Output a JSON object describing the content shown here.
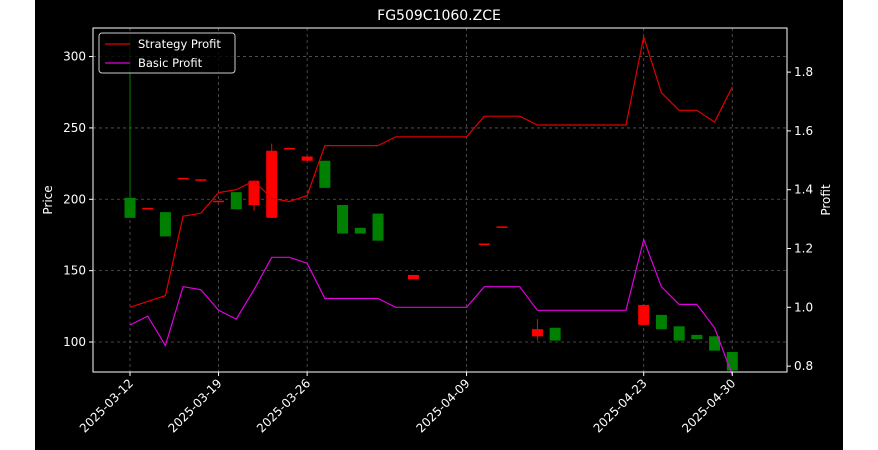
{
  "chart_data": {
    "type": "candlestick+line",
    "title": "FG509C1060.ZCE",
    "ylabel_left": "Price",
    "ylabel_right": "Profit",
    "ylim_left": [
      79,
      320
    ],
    "ylim_right": [
      0.78,
      1.95
    ],
    "yticks_left": [
      100,
      150,
      200,
      250,
      300
    ],
    "yticks_right": [
      0.8,
      1.0,
      1.2,
      1.4,
      1.6,
      1.8
    ],
    "xticks": [
      "2025-03-12",
      "2025-03-19",
      "2025-03-26",
      "2025-04-09",
      "2025-04-23",
      "2025-04-30"
    ],
    "grid": true,
    "legend_position": "top-left",
    "x_dates": [
      "2025-03-12",
      "2025-03-13",
      "2025-03-14",
      "2025-03-17",
      "2025-03-18",
      "2025-03-19",
      "2025-03-20",
      "2025-03-21",
      "2025-03-24",
      "2025-03-25",
      "2025-03-26",
      "2025-03-27",
      "2025-03-28",
      "2025-03-31",
      "2025-04-01",
      "2025-04-02",
      "2025-04-03",
      "2025-04-07",
      "2025-04-08",
      "2025-04-09",
      "2025-04-10",
      "2025-04-11",
      "2025-04-14",
      "2025-04-15",
      "2025-04-16",
      "2025-04-17",
      "2025-04-18",
      "2025-04-21",
      "2025-04-22",
      "2025-04-23",
      "2025-04-24",
      "2025-04-25",
      "2025-04-28",
      "2025-04-29",
      "2025-04-30"
    ],
    "candles": [
      {
        "x": "2025-03-12",
        "open": 201,
        "close": 187,
        "high": 316,
        "low": 187
      },
      {
        "x": "2025-03-13",
        "open": 194,
        "close": 194,
        "high": 194,
        "low": 194
      },
      {
        "x": "2025-03-14",
        "open": 191,
        "close": 174,
        "high": 191,
        "low": 174
      },
      {
        "x": "2025-03-17",
        "open": 215,
        "close": 215,
        "high": 215,
        "low": 215
      },
      {
        "x": "2025-03-18",
        "open": 214,
        "close": 214,
        "high": 214,
        "low": 214
      },
      {
        "x": "2025-03-19",
        "open": 199,
        "close": 199,
        "high": 199,
        "low": 199
      },
      {
        "x": "2025-03-20",
        "open": 205,
        "close": 193,
        "high": 205,
        "low": 193
      },
      {
        "x": "2025-03-21",
        "open": 196,
        "close": 213,
        "high": 213,
        "low": 192
      },
      {
        "x": "2025-03-24",
        "open": 187,
        "close": 234,
        "high": 239,
        "low": 187
      },
      {
        "x": "2025-03-25",
        "open": 236,
        "close": 236,
        "high": 236,
        "low": 236
      },
      {
        "x": "2025-03-26",
        "open": 227,
        "close": 230,
        "high": 230,
        "low": 227
      },
      {
        "x": "2025-03-27",
        "open": 227,
        "close": 208,
        "high": 227,
        "low": 208
      },
      {
        "x": "2025-03-28",
        "open": 196,
        "close": 176,
        "high": 196,
        "low": 176
      },
      {
        "x": "2025-03-31",
        "open": 180,
        "close": 176,
        "high": 180,
        "low": 176
      },
      {
        "x": "2025-04-01",
        "open": 190,
        "close": 171,
        "high": 190,
        "low": 171
      },
      {
        "x": "2025-04-02",
        "open": null,
        "close": null,
        "high": null,
        "low": null
      },
      {
        "x": "2025-04-03",
        "open": 144,
        "close": 147,
        "high": 147,
        "low": 144
      },
      {
        "x": "2025-04-07",
        "open": null,
        "close": null,
        "high": null,
        "low": null
      },
      {
        "x": "2025-04-08",
        "open": null,
        "close": null,
        "high": null,
        "low": null
      },
      {
        "x": "2025-04-09",
        "open": null,
        "close": null,
        "high": null,
        "low": null
      },
      {
        "x": "2025-04-10",
        "open": 169,
        "close": 169,
        "high": 169,
        "low": 169
      },
      {
        "x": "2025-04-11",
        "open": 181,
        "close": 181,
        "high": 181,
        "low": 181
      },
      {
        "x": "2025-04-14",
        "open": null,
        "close": null,
        "high": null,
        "low": null
      },
      {
        "x": "2025-04-15",
        "open": 104,
        "close": 109,
        "high": 116,
        "low": 101
      },
      {
        "x": "2025-04-16",
        "open": 110,
        "close": 101,
        "high": 110,
        "low": 101
      },
      {
        "x": "2025-04-17",
        "open": null,
        "close": null,
        "high": null,
        "low": null
      },
      {
        "x": "2025-04-18",
        "open": null,
        "close": null,
        "high": null,
        "low": null
      },
      {
        "x": "2025-04-21",
        "open": null,
        "close": null,
        "high": null,
        "low": null
      },
      {
        "x": "2025-04-22",
        "open": null,
        "close": null,
        "high": null,
        "low": null
      },
      {
        "x": "2025-04-23",
        "open": 112,
        "close": 126,
        "high": 126,
        "low": 112
      },
      {
        "x": "2025-04-24",
        "open": 119,
        "close": 109,
        "high": 119,
        "low": 109
      },
      {
        "x": "2025-04-25",
        "open": 111,
        "close": 101,
        "high": 111,
        "low": 101
      },
      {
        "x": "2025-04-28",
        "open": 105,
        "close": 102,
        "high": 105,
        "low": 102
      },
      {
        "x": "2025-04-29",
        "open": 104,
        "close": 94,
        "high": 104,
        "low": 94
      },
      {
        "x": "2025-04-30",
        "open": 93,
        "close": 80,
        "high": 93,
        "low": 80
      }
    ],
    "candle_positions": [
      0,
      1,
      2,
      3,
      4,
      5,
      6,
      7,
      8,
      9,
      10,
      11,
      12,
      13,
      14,
      15,
      16,
      17,
      18,
      19,
      20,
      21,
      22,
      23,
      24,
      25,
      26,
      27,
      28,
      29,
      30,
      31,
      32,
      33,
      34
    ],
    "series": [
      {
        "name": "Strategy Profit",
        "color": "#e00000",
        "axis": "right",
        "values": [
          1.0,
          1.02,
          1.04,
          1.31,
          1.32,
          1.39,
          1.4,
          1.43,
          1.37,
          1.36,
          1.38,
          1.55,
          1.55,
          1.55,
          1.55,
          1.58,
          1.58,
          1.58,
          1.58,
          1.58,
          1.65,
          1.65,
          1.65,
          1.62,
          1.62,
          1.62,
          1.62,
          1.62,
          1.62,
          1.92,
          1.73,
          1.67,
          1.67,
          1.63,
          1.75
        ]
      },
      {
        "name": "Basic Profit",
        "color": "#e000e0",
        "axis": "right",
        "values": [
          0.94,
          0.97,
          0.87,
          1.07,
          1.06,
          0.99,
          0.96,
          1.06,
          1.17,
          1.17,
          1.15,
          1.03,
          1.03,
          1.03,
          1.03,
          1.0,
          1.0,
          1.0,
          1.0,
          1.0,
          1.07,
          1.07,
          1.07,
          0.99,
          0.99,
          0.99,
          0.99,
          0.99,
          0.99,
          1.23,
          1.07,
          1.01,
          1.01,
          0.93,
          0.77
        ]
      }
    ],
    "candle_up_color": "#ff0000",
    "candle_down_color": "#008000"
  }
}
